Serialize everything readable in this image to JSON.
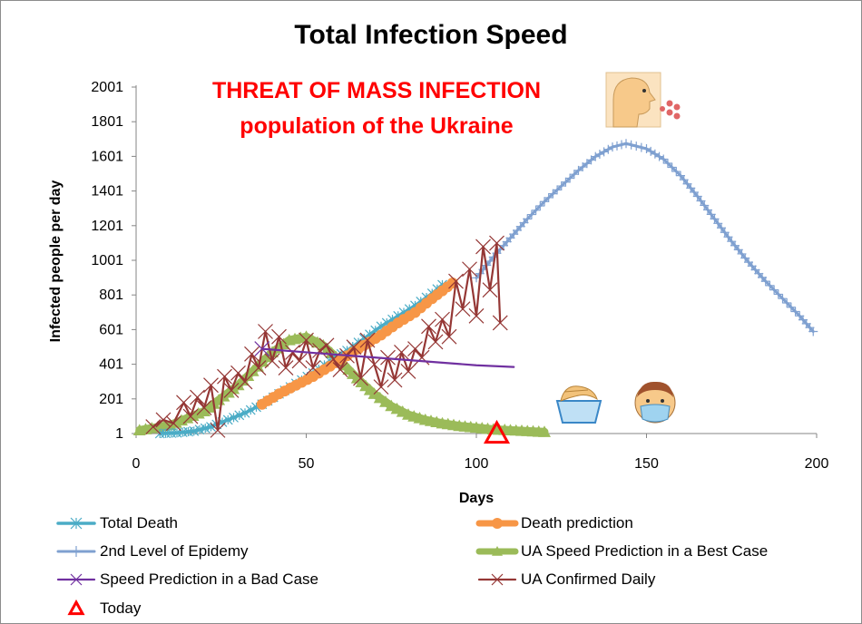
{
  "chart_data": {
    "type": "line",
    "title": "Total Infection Speed",
    "annotations": [
      "THREAT OF MASS INFECTION",
      "population of  the Ukraine"
    ],
    "xlabel": "Days",
    "ylabel": "Infected people per day",
    "xlim": [
      0,
      200
    ],
    "ylim": [
      1,
      2001
    ],
    "xticks": [
      "0",
      "50",
      "100",
      "150",
      "200"
    ],
    "yticks": [
      "1",
      "201",
      "401",
      "601",
      "801",
      "1001",
      "1201",
      "1401",
      "1601",
      "1801",
      "2001"
    ],
    "grid": false,
    "legend_position": "bottom",
    "series": [
      {
        "name": "Total Death",
        "color": "#4bacc6",
        "marker": "star",
        "x": [
          7,
          12,
          17,
          22,
          27,
          32,
          37,
          42,
          47,
          52,
          57,
          62,
          67,
          72,
          77,
          82,
          87,
          90
        ],
        "y": [
          1,
          5,
          15,
          40,
          80,
          120,
          170,
          230,
          290,
          350,
          420,
          480,
          550,
          620,
          680,
          740,
          810,
          860
        ]
      },
      {
        "name": "Death prediction",
        "color": "#f79646",
        "marker": "circle",
        "x": [
          37,
          42,
          47,
          52,
          57,
          62,
          67,
          72,
          77,
          82,
          87,
          93
        ],
        "y": [
          170,
          230,
          280,
          330,
          390,
          450,
          510,
          570,
          640,
          700,
          780,
          870
        ]
      },
      {
        "name": "2nd Level of Epidemy",
        "color": "#7fa0d0",
        "marker": "plus",
        "x": [
          100,
          105,
          110,
          115,
          120,
          125,
          130,
          135,
          140,
          144,
          150,
          155,
          160,
          165,
          170,
          175,
          180,
          185,
          190,
          195,
          199
        ],
        "y": [
          900,
          1020,
          1130,
          1240,
          1340,
          1430,
          1520,
          1600,
          1655,
          1675,
          1645,
          1585,
          1490,
          1370,
          1240,
          1110,
          990,
          880,
          780,
          680,
          590
        ]
      },
      {
        "name": "UA Speed  Prediction in a  Best Case",
        "color": "#9bbb59",
        "marker": "triangle",
        "x": [
          1,
          10,
          20,
          30,
          40,
          45,
          50,
          55,
          60,
          65,
          70,
          75,
          80,
          85,
          90,
          95,
          100,
          105,
          110,
          115,
          120
        ],
        "y": [
          20,
          50,
          130,
          280,
          470,
          540,
          560,
          510,
          420,
          320,
          230,
          160,
          110,
          80,
          60,
          45,
          35,
          25,
          20,
          15,
          10
        ]
      },
      {
        "name": "Speed Prediction in a Bad Case",
        "color": "#7030a0",
        "marker": "x",
        "x": [
          37,
          50,
          60,
          70,
          80,
          90,
          100,
          111
        ],
        "y": [
          490,
          470,
          455,
          440,
          425,
          410,
          395,
          385
        ]
      },
      {
        "name": "UA Confirmed Daily",
        "color": "#953735",
        "marker": "x",
        "x": [
          5,
          8,
          11,
          14,
          16,
          18,
          20,
          22,
          24,
          26,
          28,
          30,
          32,
          34,
          36,
          38,
          40,
          42,
          44,
          46,
          48,
          50,
          52,
          54,
          56,
          58,
          60,
          62,
          64,
          66,
          68,
          70,
          72,
          74,
          76,
          78,
          80,
          82,
          84,
          86,
          88,
          90,
          92,
          94,
          96,
          98,
          100,
          102,
          104,
          106,
          107
        ],
        "y": [
          40,
          80,
          60,
          180,
          100,
          210,
          150,
          280,
          20,
          330,
          250,
          350,
          300,
          460,
          380,
          590,
          420,
          560,
          380,
          470,
          420,
          540,
          380,
          480,
          510,
          430,
          370,
          450,
          500,
          320,
          540,
          400,
          270,
          440,
          310,
          470,
          360,
          490,
          440,
          620,
          530,
          660,
          560,
          880,
          720,
          950,
          680,
          1080,
          830,
          1100,
          640
        ]
      },
      {
        "name": "Today",
        "color": "#ff0000",
        "marker": "triangle-open",
        "x": [
          106
        ],
        "y": [
          1
        ]
      }
    ]
  },
  "icons": {
    "sneeze": "person-sneezing-icon",
    "handwash": "hand-washing-icon",
    "mask": "face-mask-icon"
  }
}
